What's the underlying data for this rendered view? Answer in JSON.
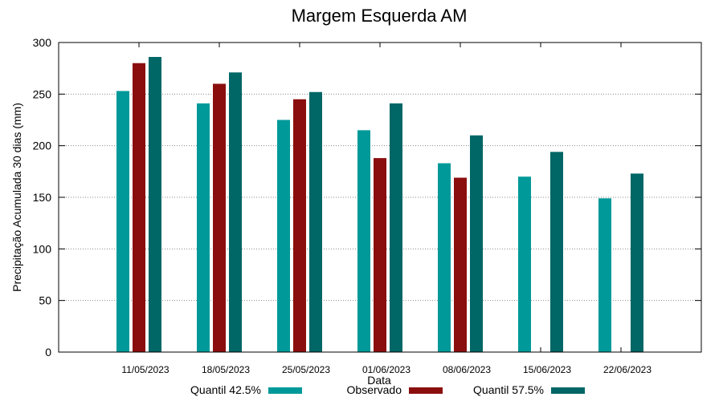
{
  "chart_data": {
    "type": "bar",
    "title": "Margem Esquerda AM",
    "xlabel": "Data",
    "ylabel": "Precipitação Acumulada 30 dias (mm)",
    "ylim": [
      0,
      300
    ],
    "yticks": [
      0,
      50,
      100,
      150,
      200,
      250,
      300
    ],
    "grid": true,
    "legend_position": "bottom",
    "categories": [
      "11/05/2023",
      "18/05/2023",
      "25/05/2023",
      "01/06/2023",
      "08/06/2023",
      "15/06/2023",
      "22/06/2023"
    ],
    "series": [
      {
        "name": "Quantil 42.5%",
        "color": "#009999",
        "values": [
          253,
          241,
          225,
          215,
          183,
          170,
          149
        ]
      },
      {
        "name": "Observado",
        "color": "#8b0e0e",
        "values": [
          280,
          260,
          245,
          188,
          169,
          null,
          null
        ]
      },
      {
        "name": "Quantil 57.5%",
        "color": "#006666",
        "values": [
          286,
          271,
          252,
          241,
          210,
          194,
          173
        ]
      }
    ]
  }
}
